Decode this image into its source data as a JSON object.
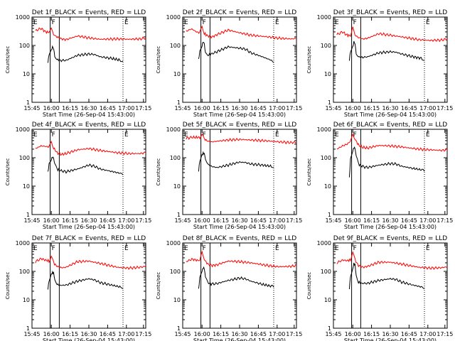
{
  "chart_data": [
    {
      "type": "line",
      "title": "Det 1f_BLACK = Events, RED = LLD",
      "xlabel": "Start Time (26-Sep-04 15:43:00)",
      "ylabel": "Counts/sec",
      "xticks": [
        "15:45",
        "16:00",
        "16:15",
        "16:30",
        "16:45",
        "17:00",
        "17:15"
      ],
      "yticks": [
        "1",
        "10",
        "100",
        "1000"
      ],
      "ylim": [
        1,
        1000
      ],
      "yscale": "log",
      "markers": [
        "E",
        "F",
        "E"
      ],
      "series": [
        {
          "color": "#ff0000",
          "x": [
            3,
            8,
            12,
            15,
            17,
            19,
            22,
            26,
            30,
            40,
            50,
            60,
            75,
            85,
            95,
            100
          ],
          "y": [
            330,
            400,
            300,
            290,
            380,
            240,
            200,
            170,
            160,
            215,
            185,
            165,
            170,
            165,
            170,
            185
          ]
        },
        {
          "color": "#000000",
          "x": [
            14,
            15,
            17,
            18,
            19,
            20,
            22,
            25,
            30,
            40,
            50,
            55,
            60,
            70,
            78,
            80
          ],
          "y": [
            25,
            45,
            65,
            90,
            80,
            45,
            32,
            30,
            30,
            45,
            50,
            48,
            40,
            35,
            30,
            28
          ]
        }
      ]
    },
    {
      "type": "line",
      "title": "Det 2f_BLACK = Events, RED = LLD",
      "xlabel": "Start Time (26-Sep-04 15:43:00)",
      "ylabel": "Counts/sec",
      "xticks": [
        "15:45",
        "16:00",
        "16:15",
        "16:30",
        "16:45",
        "17:00",
        "17:15"
      ],
      "yticks": [
        "1",
        "10",
        "100",
        "1000"
      ],
      "ylim": [
        1,
        1000
      ],
      "yscale": "log",
      "markers": [
        "E",
        "F",
        "E"
      ],
      "series": [
        {
          "color": "#ff0000",
          "x": [
            3,
            8,
            12,
            15,
            17,
            19,
            22,
            26,
            30,
            40,
            50,
            60,
            75,
            85,
            95,
            100
          ],
          "y": [
            320,
            380,
            300,
            280,
            500,
            260,
            220,
            200,
            240,
            350,
            280,
            230,
            200,
            180,
            170,
            175
          ]
        },
        {
          "color": "#000000",
          "x": [
            14,
            15,
            17,
            18,
            19,
            20,
            22,
            25,
            30,
            40,
            50,
            55,
            60,
            70,
            78,
            80
          ],
          "y": [
            30,
            60,
            100,
            140,
            120,
            55,
            45,
            50,
            60,
            90,
            80,
            75,
            55,
            40,
            30,
            25
          ]
        }
      ]
    },
    {
      "type": "line",
      "title": "Det 3f_BLACK = Events, RED = LLD",
      "xlabel": "Start Time (26-Sep-04 15:43:00)",
      "ylabel": "Counts/sec",
      "xticks": [
        "15:45",
        "16:00",
        "16:15",
        "16:30",
        "16:45",
        "17:00",
        "17:15"
      ],
      "yticks": [
        "1",
        "10",
        "100",
        "1000"
      ],
      "ylim": [
        1,
        1000
      ],
      "yscale": "log",
      "markers": [
        "E",
        "F",
        "E"
      ],
      "series": [
        {
          "color": "#ff0000",
          "x": [
            3,
            8,
            12,
            15,
            17,
            19,
            22,
            26,
            30,
            40,
            50,
            60,
            75,
            85,
            95,
            100
          ],
          "y": [
            240,
            300,
            230,
            220,
            450,
            230,
            190,
            170,
            180,
            260,
            230,
            200,
            160,
            150,
            155,
            170
          ]
        },
        {
          "color": "#000000",
          "x": [
            14,
            15,
            17,
            18,
            19,
            20,
            22,
            25,
            30,
            40,
            50,
            55,
            60,
            70,
            78,
            80
          ],
          "y": [
            30,
            60,
            90,
            140,
            120,
            55,
            40,
            38,
            40,
            55,
            60,
            58,
            50,
            40,
            35,
            30
          ]
        }
      ]
    },
    {
      "type": "line",
      "title": "Det 4f_BLACK = Events, RED = LLD",
      "xlabel": "Start Time (26-Sep-04 15:43:00)",
      "ylabel": "Counts/sec",
      "xticks": [
        "15:45",
        "16:00",
        "16:15",
        "16:30",
        "16:45",
        "17:00",
        "17:15"
      ],
      "yticks": [
        "1",
        "10",
        "100",
        "1000"
      ],
      "ylim": [
        1,
        1000
      ],
      "yscale": "log",
      "markers": [
        "E",
        "F",
        "E"
      ],
      "series": [
        {
          "color": "#ff0000",
          "x": [
            3,
            8,
            12,
            15,
            17,
            19,
            22,
            26,
            30,
            40,
            50,
            60,
            75,
            85,
            95,
            100
          ],
          "y": [
            210,
            260,
            250,
            240,
            400,
            220,
            150,
            130,
            140,
            190,
            210,
            180,
            150,
            140,
            140,
            150
          ]
        },
        {
          "color": "#000000",
          "x": [
            14,
            15,
            17,
            18,
            19,
            20,
            22,
            25,
            30,
            40,
            50,
            55,
            60,
            70,
            78,
            80
          ],
          "y": [
            30,
            60,
            90,
            110,
            100,
            60,
            40,
            35,
            32,
            40,
            55,
            50,
            40,
            33,
            28,
            25
          ]
        }
      ]
    },
    {
      "type": "line",
      "title": "Det 5f_BLACK = Events, RED = LLD",
      "xlabel": "Start Time (26-Sep-04 15:43:00)",
      "ylabel": "Counts/sec",
      "xticks": [
        "15:45",
        "16:00",
        "16:15",
        "16:30",
        "16:45",
        "17:00",
        "17:15"
      ],
      "yticks": [
        "1",
        "10",
        "100",
        "1000"
      ],
      "ylim": [
        1,
        1000
      ],
      "yscale": "log",
      "markers": [
        "E",
        "F",
        "E"
      ],
      "series": [
        {
          "color": "#ff0000",
          "x": [
            3,
            8,
            12,
            15,
            17,
            19,
            22,
            26,
            30,
            40,
            50,
            60,
            75,
            85,
            95,
            100
          ],
          "y": [
            480,
            520,
            520,
            520,
            700,
            460,
            380,
            360,
            380,
            420,
            440,
            420,
            390,
            360,
            340,
            350
          ]
        },
        {
          "color": "#000000",
          "x": [
            14,
            15,
            17,
            18,
            19,
            20,
            22,
            25,
            30,
            40,
            50,
            55,
            60,
            70,
            78,
            80
          ],
          "y": [
            35,
            80,
            130,
            150,
            140,
            90,
            60,
            50,
            45,
            55,
            70,
            68,
            60,
            55,
            50,
            45
          ]
        }
      ]
    },
    {
      "type": "line",
      "title": "Det 6f_BLACK = Events, RED = LLD",
      "xlabel": "Start Time (26-Sep-04 15:43:00)",
      "ylabel": "Counts/sec",
      "xticks": [
        "15:45",
        "16:00",
        "16:15",
        "16:30",
        "16:45",
        "17:00",
        "17:15"
      ],
      "yticks": [
        "1",
        "10",
        "100",
        "1000"
      ],
      "ylim": [
        1,
        1000
      ],
      "yscale": "log",
      "markers": [
        "E",
        "F",
        "E"
      ],
      "series": [
        {
          "color": "#ff0000",
          "x": [
            3,
            8,
            12,
            15,
            17,
            19,
            22,
            26,
            30,
            40,
            50,
            60,
            75,
            85,
            95,
            100
          ],
          "y": [
            200,
            260,
            300,
            380,
            700,
            450,
            280,
            230,
            220,
            270,
            260,
            240,
            200,
            190,
            180,
            190
          ]
        },
        {
          "color": "#000000",
          "x": [
            14,
            15,
            17,
            18,
            19,
            20,
            22,
            25,
            30,
            40,
            50,
            55,
            60,
            70,
            78,
            80
          ],
          "y": [
            20,
            90,
            180,
            230,
            210,
            110,
            60,
            50,
            45,
            55,
            62,
            60,
            50,
            42,
            37,
            33
          ]
        }
      ]
    },
    {
      "type": "line",
      "title": "Det 7f_BLACK = Events, RED = LLD",
      "xlabel": "Start Time (26-Sep-04 15:43:00)",
      "ylabel": "Counts/sec",
      "xticks": [
        "15:45",
        "16:00",
        "16:15",
        "16:30",
        "16:45",
        "17:00",
        "17:15"
      ],
      "yticks": [
        "1",
        "10",
        "100",
        "1000"
      ],
      "ylim": [
        1,
        1000
      ],
      "yscale": "log",
      "markers": [
        "E",
        "F",
        "E"
      ],
      "series": [
        {
          "color": "#ff0000",
          "x": [
            3,
            8,
            12,
            15,
            17,
            19,
            22,
            26,
            30,
            40,
            50,
            60,
            75,
            85,
            95,
            100
          ],
          "y": [
            220,
            280,
            250,
            230,
            350,
            200,
            150,
            135,
            140,
            220,
            230,
            190,
            140,
            130,
            140,
            150
          ]
        },
        {
          "color": "#000000",
          "x": [
            14,
            15,
            17,
            18,
            19,
            20,
            22,
            25,
            30,
            40,
            50,
            55,
            60,
            70,
            78,
            80
          ],
          "y": [
            25,
            50,
            80,
            90,
            85,
            50,
            35,
            32,
            33,
            45,
            55,
            50,
            40,
            33,
            28,
            25
          ]
        }
      ]
    },
    {
      "type": "line",
      "title": "Det 8f_BLACK = Events, RED = LLD",
      "xlabel": "Start Time (26-Sep-04 15:43:00)",
      "ylabel": "Counts/sec",
      "xticks": [
        "15:45",
        "16:00",
        "16:15",
        "16:30",
        "16:45",
        "17:00",
        "17:15"
      ],
      "yticks": [
        "1",
        "10",
        "100",
        "1000"
      ],
      "ylim": [
        1,
        1000
      ],
      "yscale": "log",
      "markers": [
        "E",
        "F",
        "E"
      ],
      "series": [
        {
          "color": "#ff0000",
          "x": [
            3,
            8,
            12,
            15,
            17,
            19,
            22,
            26,
            30,
            40,
            50,
            60,
            75,
            85,
            95,
            100
          ],
          "y": [
            220,
            270,
            250,
            240,
            480,
            260,
            180,
            160,
            170,
            230,
            220,
            200,
            160,
            145,
            150,
            160
          ]
        },
        {
          "color": "#000000",
          "x": [
            14,
            15,
            17,
            18,
            19,
            20,
            22,
            25,
            30,
            40,
            50,
            55,
            60,
            70,
            78,
            80
          ],
          "y": [
            25,
            60,
            100,
            130,
            120,
            60,
            40,
            36,
            37,
            48,
            58,
            55,
            45,
            35,
            30,
            28
          ]
        }
      ]
    },
    {
      "type": "line",
      "title": "Det 9f_BLACK = Events, RED = LLD",
      "xlabel": "Start Time (26-Sep-04 15:43:00)",
      "ylabel": "Counts/sec",
      "xticks": [
        "15:45",
        "16:00",
        "16:15",
        "16:30",
        "16:45",
        "17:00",
        "17:15"
      ],
      "yticks": [
        "1",
        "10",
        "100",
        "1000"
      ],
      "ylim": [
        1,
        1000
      ],
      "yscale": "log",
      "markers": [
        "E",
        "F",
        "E"
      ],
      "series": [
        {
          "color": "#ff0000",
          "x": [
            3,
            8,
            12,
            15,
            17,
            19,
            22,
            26,
            30,
            40,
            50,
            60,
            75,
            85,
            95,
            100
          ],
          "y": [
            200,
            250,
            240,
            250,
            480,
            250,
            160,
            140,
            150,
            210,
            210,
            180,
            140,
            130,
            135,
            145
          ]
        },
        {
          "color": "#000000",
          "x": [
            14,
            15,
            17,
            18,
            19,
            20,
            22,
            25,
            30,
            40,
            50,
            55,
            60,
            70,
            78,
            80
          ],
          "y": [
            25,
            70,
            120,
            180,
            160,
            70,
            42,
            38,
            38,
            48,
            55,
            52,
            42,
            33,
            28,
            25
          ]
        }
      ]
    }
  ]
}
